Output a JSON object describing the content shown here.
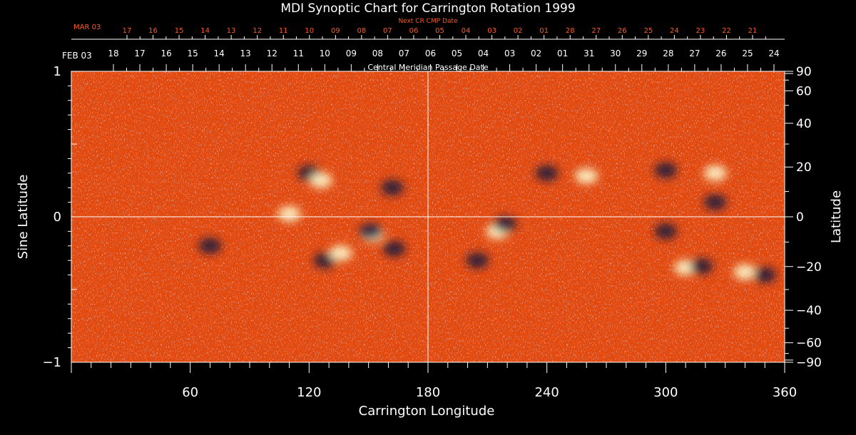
{
  "chart_data": {
    "type": "heatmap",
    "title": "MDI Synoptic Chart for Carrington Rotation 1999",
    "xlabel": "Carrington Longitude",
    "ylabel_left": "Sine Latitude",
    "ylabel_right": "Latitude",
    "top_axis_label": "Central Meridian Passage Date",
    "next_cr_label": "Next CR CMP Date",
    "xlim": [
      0,
      360
    ],
    "ylim": [
      -1,
      1
    ],
    "x_ticks": [
      "60",
      "120",
      "180",
      "240",
      "300",
      "360"
    ],
    "y_ticks_left": [
      "1",
      "0",
      "−1"
    ],
    "y_ticks_right": [
      "90",
      "60",
      "40",
      "20",
      "0",
      "−20",
      "−40",
      "−60",
      "−90"
    ],
    "latitude_ticks_deg": [
      90,
      60,
      40,
      20,
      0,
      -20,
      -40,
      -60,
      -90
    ],
    "cmp_start_label": "FEB 03",
    "cmp_dates": [
      "18",
      "17",
      "16",
      "15",
      "14",
      "13",
      "12",
      "11",
      "10",
      "09",
      "08",
      "07",
      "06",
      "05",
      "04",
      "03",
      "02",
      "01",
      "31",
      "30",
      "29",
      "28",
      "27",
      "26",
      "25",
      "24"
    ],
    "next_start_label": "MAR 03",
    "next_dates": [
      "17",
      "16",
      "15",
      "14",
      "13",
      "12",
      "11",
      "10",
      "09",
      "08",
      "07",
      "06",
      "05",
      "04",
      "03",
      "02",
      "01",
      "28",
      "27",
      "26",
      "25",
      "24",
      "23",
      "22",
      "21"
    ],
    "crosshair": {
      "longitude": 180,
      "sine_latitude": 0
    },
    "colors": {
      "background": "#000000",
      "axes": "#ffffff",
      "next_cr_text": "#ff5a1e",
      "field_base": "#e24a10",
      "positive_polarity": "#ffffd2",
      "negative_polarity": "#14143c"
    },
    "active_regions": [
      {
        "lon": 120,
        "sinlat": 0.3,
        "polarity": "negative"
      },
      {
        "lon": 126,
        "sinlat": 0.25,
        "polarity": "positive"
      },
      {
        "lon": 162,
        "sinlat": 0.2,
        "polarity": "negative"
      },
      {
        "lon": 110,
        "sinlat": 0.02,
        "polarity": "positive"
      },
      {
        "lon": 70,
        "sinlat": -0.2,
        "polarity": "negative"
      },
      {
        "lon": 128,
        "sinlat": -0.3,
        "polarity": "negative"
      },
      {
        "lon": 136,
        "sinlat": -0.25,
        "polarity": "positive"
      },
      {
        "lon": 152,
        "sinlat": -0.12,
        "polarity": "positive"
      },
      {
        "lon": 163,
        "sinlat": -0.22,
        "polarity": "negative"
      },
      {
        "lon": 151,
        "sinlat": -0.1,
        "polarity": "negative"
      },
      {
        "lon": 215,
        "sinlat": -0.1,
        "polarity": "positive"
      },
      {
        "lon": 219,
        "sinlat": -0.05,
        "polarity": "negative"
      },
      {
        "lon": 205,
        "sinlat": -0.3,
        "polarity": "negative"
      },
      {
        "lon": 300,
        "sinlat": -0.1,
        "polarity": "negative"
      },
      {
        "lon": 310,
        "sinlat": -0.35,
        "polarity": "positive"
      },
      {
        "lon": 318,
        "sinlat": -0.34,
        "polarity": "negative"
      },
      {
        "lon": 340,
        "sinlat": -0.38,
        "polarity": "positive"
      },
      {
        "lon": 350,
        "sinlat": -0.4,
        "polarity": "negative"
      },
      {
        "lon": 325,
        "sinlat": 0.1,
        "polarity": "negative"
      },
      {
        "lon": 300,
        "sinlat": 0.32,
        "polarity": "negative"
      },
      {
        "lon": 325,
        "sinlat": 0.3,
        "polarity": "positive"
      },
      {
        "lon": 240,
        "sinlat": 0.3,
        "polarity": "negative"
      },
      {
        "lon": 260,
        "sinlat": 0.28,
        "polarity": "positive"
      }
    ]
  }
}
